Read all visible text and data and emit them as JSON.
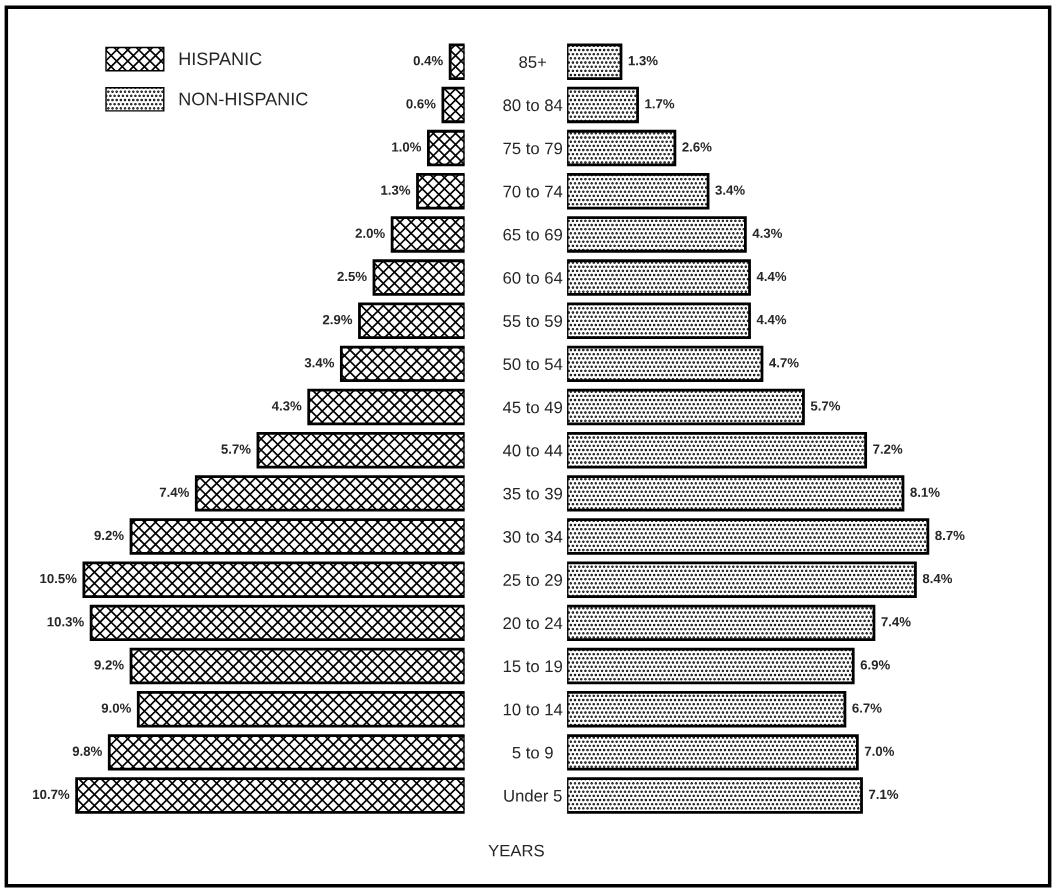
{
  "chart_data": [
    {
      "type": "bar",
      "orientation": "horizontal",
      "ylabel": "YEARS",
      "legend": "top left",
      "categories": [
        "85+",
        "80 to 84",
        "75 to 79",
        "70 to 74",
        "65 to 69",
        "60 to 64",
        "55 to 59",
        "50 to 54",
        "45 to 49",
        "40 to 44",
        "35 to 39",
        "30 to 34",
        "25 to 29",
        "20 to 24",
        "15 to 19",
        "10 to 14",
        "5 to 9",
        "Under 5"
      ],
      "series": [
        {
          "name": "HISPANIC",
          "color": "#000000",
          "values": [
            0.4,
            0.6,
            1.0,
            1.3,
            2.0,
            2.5,
            2.9,
            3.4,
            4.3,
            5.7,
            7.4,
            9.2,
            10.5,
            10.3,
            9.2,
            9.0,
            9.8,
            10.7
          ],
          "value_labels": [
            "0.4%",
            "0.6%",
            "1.0%",
            "1.3%",
            "2.0%",
            "2.5%",
            "2.9%",
            "3.4%",
            "4.3%",
            "5.7%",
            "7.4%",
            "9.2%",
            "10.5%",
            "10.3%",
            "9.2%",
            "9.0%",
            "9.8%",
            "10.7%"
          ]
        }
      ]
    },
    {
      "type": "bar",
      "orientation": "horizontal",
      "legend": "top left",
      "categories": [
        null,
        null,
        null,
        null,
        null,
        null,
        null,
        null,
        null,
        null,
        null,
        null,
        null,
        null,
        null,
        null,
        null,
        null
      ],
      "series": [
        {
          "name": "NON-HISPANIC",
          "color": "#000000",
          "values": [
            1.3,
            1.7,
            2.6,
            3.4,
            4.3,
            4.4,
            4.4,
            4.7,
            5.7,
            7.2,
            8.1,
            8.7,
            8.4,
            7.4,
            6.9,
            6.7,
            7.0,
            7.1
          ],
          "value_labels": [
            "1.3%",
            "1.7%",
            "2.6%",
            "3.4%",
            "4.3%",
            "4.4%",
            "4.4%",
            "4.7%",
            "5.7%",
            "7.2%",
            "8.1%",
            "8.7%",
            "8.4%",
            "7.4%",
            "6.9%",
            "6.7%",
            "7.0%",
            "7.1%"
          ]
        }
      ]
    }
  ]
}
